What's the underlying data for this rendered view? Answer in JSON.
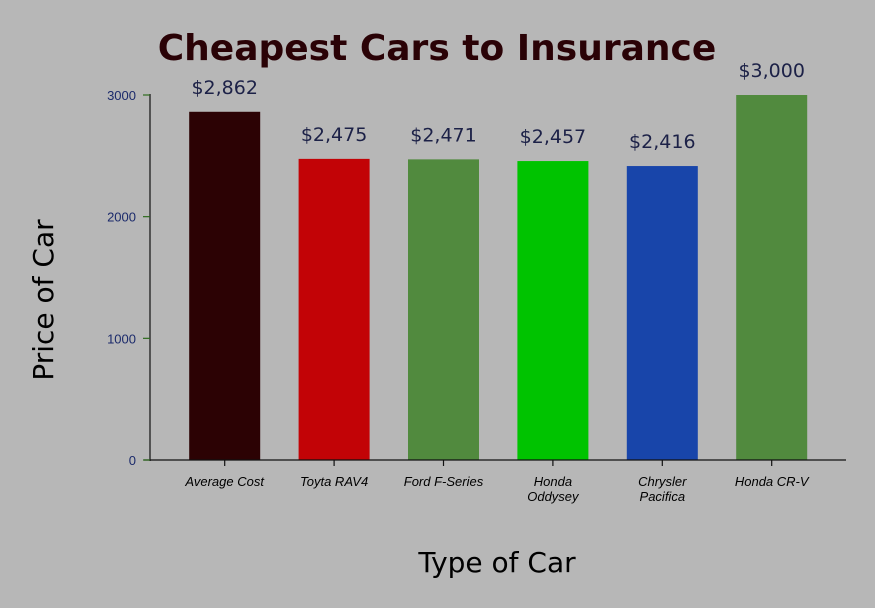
{
  "chart_data": {
    "type": "bar",
    "title": "Cheapest Cars to Insurance",
    "xlabel": "Type of Car",
    "ylabel": "Price of Car",
    "categories": [
      [
        "Average Cost"
      ],
      [
        "Toyta RAV4"
      ],
      [
        "Ford F-Series"
      ],
      [
        "Honda",
        "Oddysey"
      ],
      [
        "Chrysler",
        "Pacifica"
      ],
      [
        "Honda CR-V"
      ]
    ],
    "values": [
      2862,
      2475,
      2471,
      2457,
      2416,
      3000
    ],
    "data_labels": [
      "$2,862",
      "$2,475",
      "$2,471",
      "$2,457",
      "$2,416",
      "$3,000"
    ],
    "bar_colors": [
      "#2c0204",
      "#c20306",
      "#518a3e",
      "#00c300",
      "#1845aa",
      "#518a3e"
    ],
    "yticks": [
      0,
      1000,
      2000,
      3000
    ],
    "ylim": [
      0,
      3000
    ],
    "grid": false,
    "legend": "none"
  }
}
